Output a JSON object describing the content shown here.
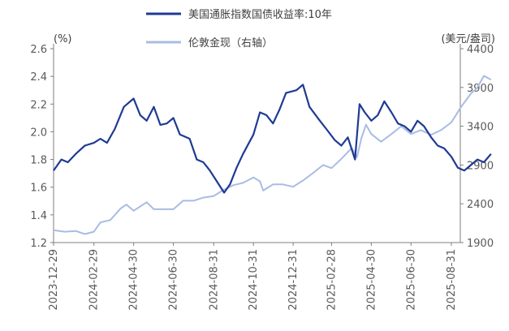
{
  "chart_data": {
    "type": "line",
    "left_unit": "(%)",
    "right_unit": "(美元/盎司)",
    "x_ticks": [
      "2023-12-29",
      "2024-02-29",
      "2024-04-30",
      "2024-06-30",
      "2024-08-31",
      "2024-10-31",
      "2024-12-31",
      "2025-02-28",
      "2025-04-30",
      "2025-06-30",
      "2025-08-31"
    ],
    "y_left": {
      "min": 1.2,
      "max": 2.6,
      "step": 0.2,
      "ticks": [
        "1.2",
        "1.4",
        "1.6",
        "1.8",
        "2.0",
        "2.2",
        "2.4",
        "2.6"
      ]
    },
    "y_right": {
      "min": 1900,
      "max": 4400,
      "step": 500,
      "ticks": [
        "1900",
        "2400",
        "2900",
        "3400",
        "3900",
        "4400"
      ]
    },
    "series": [
      {
        "name": "美国通胀指数国债收益率:10年",
        "axis": "left",
        "color": "#1f3a93",
        "points": [
          [
            "2023-12-29",
            1.72
          ],
          [
            "2024-01-10",
            1.8
          ],
          [
            "2024-01-20",
            1.78
          ],
          [
            "2024-02-01",
            1.84
          ],
          [
            "2024-02-15",
            1.9
          ],
          [
            "2024-02-29",
            1.92
          ],
          [
            "2024-03-10",
            1.95
          ],
          [
            "2024-03-20",
            1.92
          ],
          [
            "2024-04-01",
            2.02
          ],
          [
            "2024-04-15",
            2.18
          ],
          [
            "2024-04-25",
            2.22
          ],
          [
            "2024-04-30",
            2.24
          ],
          [
            "2024-05-10",
            2.12
          ],
          [
            "2024-05-20",
            2.08
          ],
          [
            "2024-05-31",
            2.18
          ],
          [
            "2024-06-10",
            2.05
          ],
          [
            "2024-06-20",
            2.06
          ],
          [
            "2024-06-30",
            2.1
          ],
          [
            "2024-07-10",
            1.98
          ],
          [
            "2024-07-25",
            1.95
          ],
          [
            "2024-08-05",
            1.8
          ],
          [
            "2024-08-15",
            1.78
          ],
          [
            "2024-08-25",
            1.72
          ],
          [
            "2024-09-05",
            1.64
          ],
          [
            "2024-09-16",
            1.56
          ],
          [
            "2024-09-25",
            1.62
          ],
          [
            "2024-10-05",
            1.74
          ],
          [
            "2024-10-15",
            1.84
          ],
          [
            "2024-10-31",
            1.98
          ],
          [
            "2024-11-10",
            2.14
          ],
          [
            "2024-11-20",
            2.12
          ],
          [
            "2024-11-30",
            2.06
          ],
          [
            "2024-12-10",
            2.16
          ],
          [
            "2024-12-20",
            2.28
          ],
          [
            "2025-01-05",
            2.3
          ],
          [
            "2025-01-15",
            2.34
          ],
          [
            "2025-01-25",
            2.18
          ],
          [
            "2025-02-10",
            2.08
          ],
          [
            "2025-02-20",
            2.02
          ],
          [
            "2025-03-05",
            1.94
          ],
          [
            "2025-03-15",
            1.9
          ],
          [
            "2025-03-25",
            1.96
          ],
          [
            "2025-04-05",
            1.8
          ],
          [
            "2025-04-12",
            2.2
          ],
          [
            "2025-04-20",
            2.14
          ],
          [
            "2025-04-30",
            2.08
          ],
          [
            "2025-05-10",
            2.12
          ],
          [
            "2025-05-20",
            2.22
          ],
          [
            "2025-05-31",
            2.14
          ],
          [
            "2025-06-10",
            2.06
          ],
          [
            "2025-06-20",
            2.04
          ],
          [
            "2025-06-30",
            2.0
          ],
          [
            "2025-07-10",
            2.08
          ],
          [
            "2025-07-20",
            2.04
          ],
          [
            "2025-07-31",
            1.96
          ],
          [
            "2025-08-10",
            1.9
          ],
          [
            "2025-08-20",
            1.88
          ],
          [
            "2025-08-31",
            1.82
          ],
          [
            "2025-09-10",
            1.74
          ],
          [
            "2025-09-20",
            1.72
          ],
          [
            "2025-09-30",
            1.76
          ],
          [
            "2025-10-10",
            1.8
          ],
          [
            "2025-10-20",
            1.78
          ],
          [
            "2025-10-31",
            1.84
          ]
        ]
      },
      {
        "name": "伦敦金现（右轴）",
        "axis": "right",
        "color": "#a9bce3",
        "points": [
          [
            "2023-12-29",
            2060
          ],
          [
            "2024-01-15",
            2040
          ],
          [
            "2024-02-01",
            2050
          ],
          [
            "2024-02-15",
            2010
          ],
          [
            "2024-02-29",
            2040
          ],
          [
            "2024-03-10",
            2160
          ],
          [
            "2024-03-25",
            2190
          ],
          [
            "2024-04-10",
            2340
          ],
          [
            "2024-04-19",
            2390
          ],
          [
            "2024-04-30",
            2310
          ],
          [
            "2024-05-20",
            2420
          ],
          [
            "2024-05-31",
            2330
          ],
          [
            "2024-06-15",
            2330
          ],
          [
            "2024-06-30",
            2330
          ],
          [
            "2024-07-15",
            2440
          ],
          [
            "2024-07-31",
            2440
          ],
          [
            "2024-08-15",
            2480
          ],
          [
            "2024-08-31",
            2500
          ],
          [
            "2024-09-15",
            2580
          ],
          [
            "2024-09-30",
            2640
          ],
          [
            "2024-10-15",
            2670
          ],
          [
            "2024-10-31",
            2740
          ],
          [
            "2024-11-10",
            2690
          ],
          [
            "2024-11-15",
            2570
          ],
          [
            "2024-11-30",
            2650
          ],
          [
            "2024-12-15",
            2650
          ],
          [
            "2024-12-31",
            2620
          ],
          [
            "2025-01-15",
            2700
          ],
          [
            "2025-01-31",
            2800
          ],
          [
            "2025-02-15",
            2900
          ],
          [
            "2025-02-28",
            2860
          ],
          [
            "2025-03-15",
            2980
          ],
          [
            "2025-03-31",
            3120
          ],
          [
            "2025-04-08",
            3000
          ],
          [
            "2025-04-15",
            3250
          ],
          [
            "2025-04-22",
            3420
          ],
          [
            "2025-04-30",
            3300
          ],
          [
            "2025-05-15",
            3200
          ],
          [
            "2025-05-31",
            3300
          ],
          [
            "2025-06-15",
            3400
          ],
          [
            "2025-06-30",
            3300
          ],
          [
            "2025-07-15",
            3350
          ],
          [
            "2025-07-31",
            3290
          ],
          [
            "2025-08-15",
            3350
          ],
          [
            "2025-08-31",
            3450
          ],
          [
            "2025-09-15",
            3650
          ],
          [
            "2025-09-30",
            3820
          ],
          [
            "2025-10-10",
            3900
          ],
          [
            "2025-10-20",
            4050
          ],
          [
            "2025-10-31",
            4000
          ]
        ]
      }
    ]
  }
}
